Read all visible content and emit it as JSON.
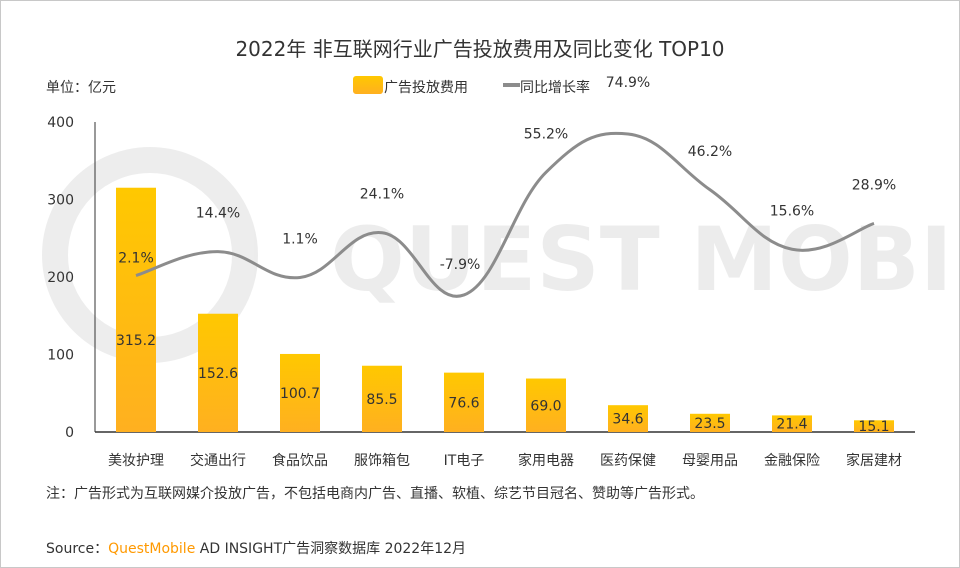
{
  "chart_data": {
    "type": "bar+line",
    "title": "2022年 非互联网行业广告投放费用及同比变化 TOP10",
    "unit_label": "单位：亿元",
    "categories": [
      "美妆护理",
      "交通出行",
      "食品饮品",
      "服饰箱包",
      "IT电子",
      "家用电器",
      "医药保健",
      "母婴用品",
      "金融保险",
      "家居建材"
    ],
    "series": [
      {
        "name": "广告投放费用",
        "type": "bar",
        "axis": "left",
        "values": [
          315.2,
          152.6,
          100.7,
          85.5,
          76.6,
          69.0,
          34.6,
          23.5,
          21.4,
          15.1
        ],
        "labels": [
          "315.2",
          "152.6",
          "100.7",
          "85.5",
          "76.6",
          "69.0",
          "34.6",
          "23.5",
          "21.4",
          "15.1"
        ],
        "color": "#FFC000"
      },
      {
        "name": "同比增长率",
        "type": "line",
        "axis": "right-hidden",
        "smooth": true,
        "values": [
          2.1,
          14.4,
          1.1,
          24.1,
          -7.9,
          55.2,
          74.9,
          46.2,
          15.6,
          28.9
        ],
        "labels": [
          "2.1%",
          "14.4%",
          "1.1%",
          "24.1%",
          "-7.9%",
          "55.2%",
          "74.9%",
          "46.2%",
          "15.6%",
          "28.9%"
        ],
        "color": "#8C8C8C"
      }
    ],
    "ylim": [
      0,
      400
    ],
    "yticks": [
      "0",
      "100",
      "200",
      "300",
      "400"
    ],
    "grid": false,
    "legend": "top-center"
  },
  "note": "注：广告形式为互联网媒介投放广告，不包括电商内广告、直播、软植、综艺节目冠名、赞助等广告形式。",
  "source": {
    "prefix": "Source：",
    "brand": "QuestMobile",
    "rest": " AD INSIGHT广告洞察数据库 2022年12月"
  },
  "watermark": "QUEST MOBILE",
  "colors": {
    "brand": "#FF9900",
    "bar_top": "#FFC000",
    "bar_bottom": "#FFB020",
    "line": "#8C8C8C"
  }
}
